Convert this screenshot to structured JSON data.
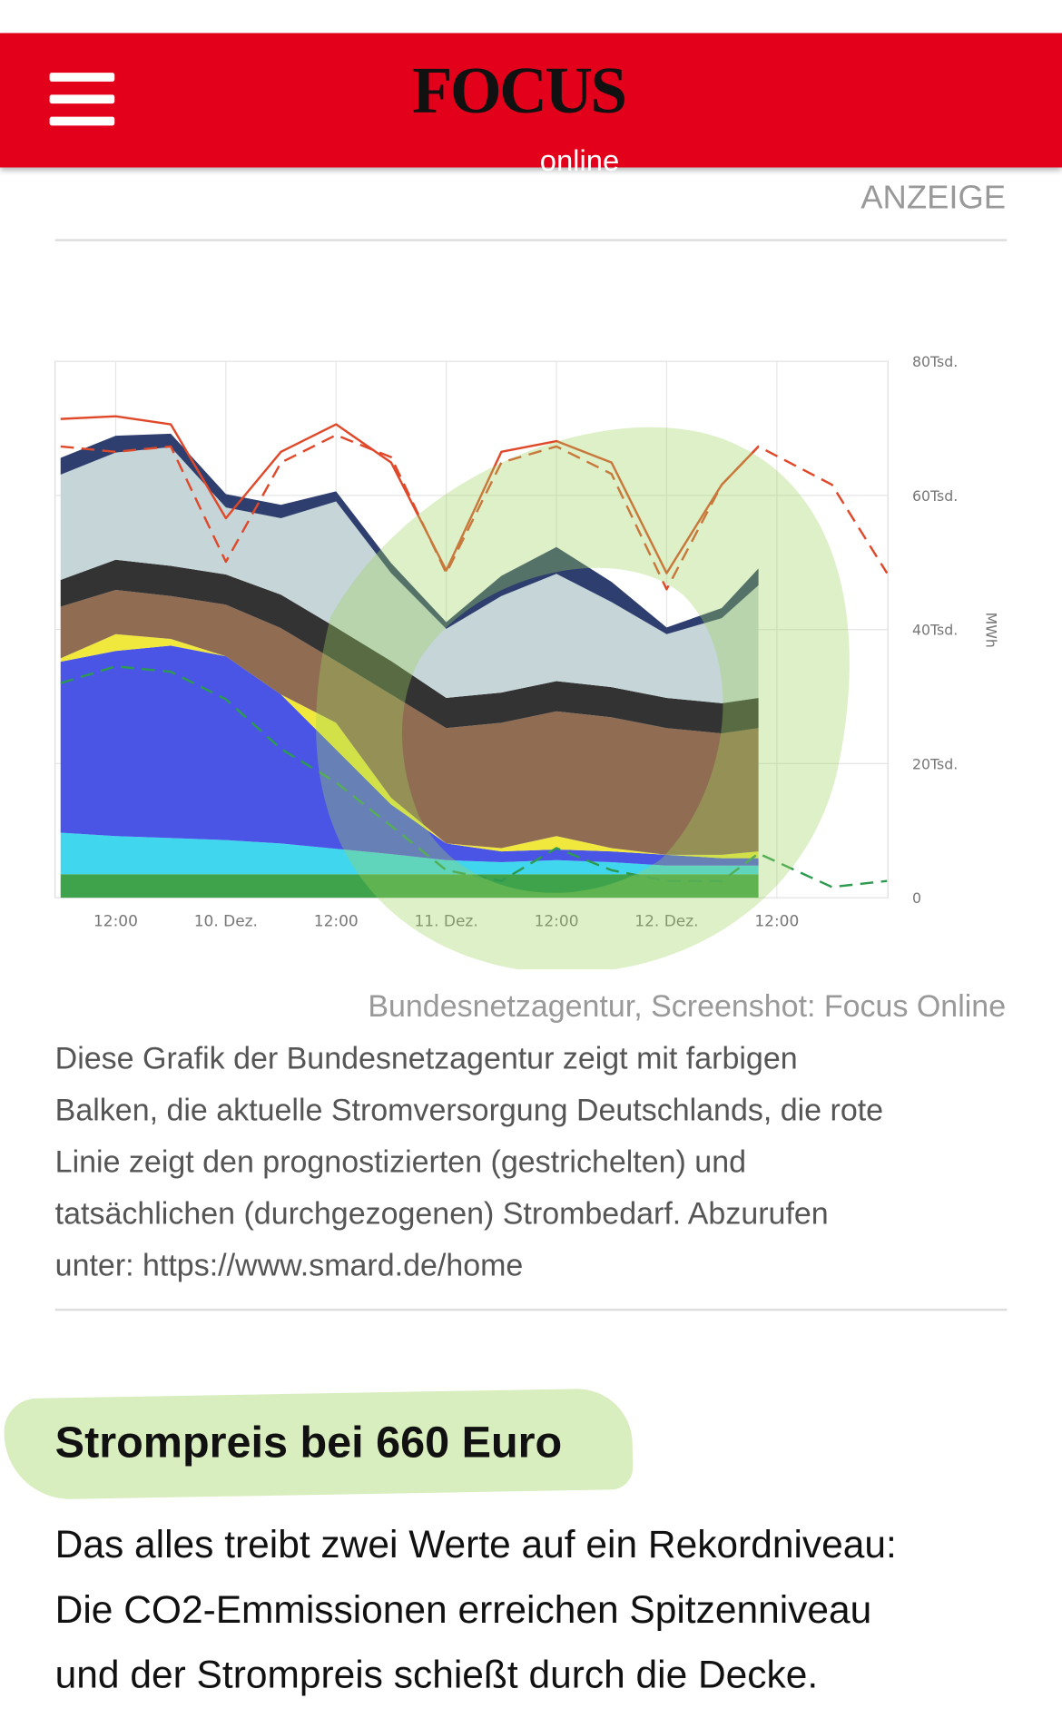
{
  "header": {
    "logo": "FOCUS",
    "logo_sub": "online"
  },
  "ad_label": "ANZEIGE",
  "chart_data": {
    "type": "area",
    "stacked": true,
    "x": [
      6,
      12,
      18,
      24,
      30,
      36,
      42,
      48,
      54,
      60,
      66,
      72,
      78,
      82,
      90,
      96
    ],
    "xlim": [
      5.4,
      96.1
    ],
    "xticks": [
      {
        "value": 12,
        "label": "12:00"
      },
      {
        "value": 24,
        "label": "10. Dez."
      },
      {
        "value": 36,
        "label": "12:00"
      },
      {
        "value": 48,
        "label": "11. Dez."
      },
      {
        "value": 60,
        "label": "12:00"
      },
      {
        "value": 72,
        "label": "12. Dez."
      },
      {
        "value": 84,
        "label": "12:00"
      }
    ],
    "ylim": [
      0,
      80000
    ],
    "yticks": [
      {
        "value": 0,
        "label": "0"
      },
      {
        "value": 20000,
        "label": "20Tsd."
      },
      {
        "value": 40000,
        "label": "40Tsd."
      },
      {
        "value": 60000,
        "label": "60Tsd."
      },
      {
        "value": 80000,
        "label": "80Tsd."
      }
    ],
    "ylabel": "MWh",
    "grid": true,
    "series": [
      {
        "kind": "area",
        "color": "#3ea34b",
        "values": [
          3500,
          3500,
          3500,
          3500,
          3500,
          3500,
          3500,
          3500,
          3500,
          3500,
          3500,
          3500,
          3500,
          3500,
          null,
          null
        ]
      },
      {
        "kind": "area",
        "color": "#3fd6ee",
        "values": [
          6200,
          5700,
          5400,
          5100,
          4600,
          3800,
          3000,
          2100,
          1800,
          2100,
          1800,
          1300,
          1300,
          1300,
          null,
          null
        ]
      },
      {
        "kind": "area",
        "color": "#4a55e6",
        "values": [
          25500,
          27600,
          28700,
          27400,
          22200,
          14800,
          7400,
          2500,
          1600,
          1600,
          1600,
          1600,
          1100,
          1100,
          null,
          null
        ]
      },
      {
        "kind": "area",
        "color": "#f0e83c",
        "values": [
          500,
          2500,
          1000,
          0,
          0,
          4000,
          1000,
          0,
          500,
          2000,
          500,
          0,
          500,
          1000,
          null,
          null
        ]
      },
      {
        "kind": "area",
        "color": "#8f6c52",
        "values": [
          7700,
          6600,
          6400,
          7700,
          9900,
          9200,
          15400,
          17200,
          18700,
          18600,
          19500,
          18900,
          18100,
          18400,
          null,
          null
        ]
      },
      {
        "kind": "area",
        "color": "#333333",
        "values": [
          4000,
          4500,
          4500,
          4500,
          5000,
          5000,
          5000,
          4500,
          4500,
          4500,
          4500,
          4500,
          4500,
          4500,
          null,
          null
        ]
      },
      {
        "kind": "area",
        "color": "#c5d5d8",
        "values": [
          15700,
          16000,
          17700,
          10000,
          11400,
          18800,
          13100,
          10300,
          14400,
          16000,
          12700,
          9500,
          12700,
          16800,
          null,
          null
        ]
      },
      {
        "kind": "area",
        "color": "#2e3e6e",
        "values": [
          2500,
          2500,
          2000,
          2000,
          2000,
          1500,
          1500,
          1000,
          3000,
          4000,
          3000,
          1000,
          1500,
          2500,
          null,
          null
        ]
      },
      {
        "kind": "line",
        "color": "#e0482a",
        "dashed": false,
        "values": [
          71400,
          71800,
          70600,
          56600,
          66500,
          70600,
          64900,
          48800,
          66500,
          68100,
          64900,
          48400,
          61600,
          67300,
          null,
          null
        ]
      },
      {
        "kind": "line",
        "color": "#e0482a",
        "dashed": true,
        "values": [
          67300,
          66500,
          67300,
          50100,
          64900,
          69000,
          65700,
          48400,
          64900,
          67300,
          63200,
          46000,
          61600,
          67300,
          61600,
          48400
        ]
      },
      {
        "kind": "line",
        "color": "#2e9a50",
        "dashed": true,
        "values": [
          32000,
          34500,
          33700,
          29600,
          22200,
          17200,
          10700,
          4100,
          2500,
          7400,
          4100,
          2500,
          2500,
          6600,
          1600,
          2500
        ]
      }
    ]
  },
  "figure": {
    "credit": "Bundesnetzagentur, Screenshot: Focus Online",
    "caption": [
      "Diese Grafik der Bundesnetzagentur zeigt mit farbigen",
      "Balken, die aktuelle Stromversorgung Deutschlands, die rote",
      "Linie zeigt den prognostizierten (gestrichelten) und",
      "tatsächlichen (durchgezogenen) Strombedarf. Abzurufen",
      "unter: https://www.smard.de/home"
    ]
  },
  "article": {
    "heading": "Strompreis bei 660 Euro",
    "body": [
      "Das alles treibt zwei Werte auf ein Rekordniveau:",
      "Die CO2-Emmissionen erreichen Spitzenniveau",
      "und der Strompreis schießt durch die Decke."
    ]
  }
}
